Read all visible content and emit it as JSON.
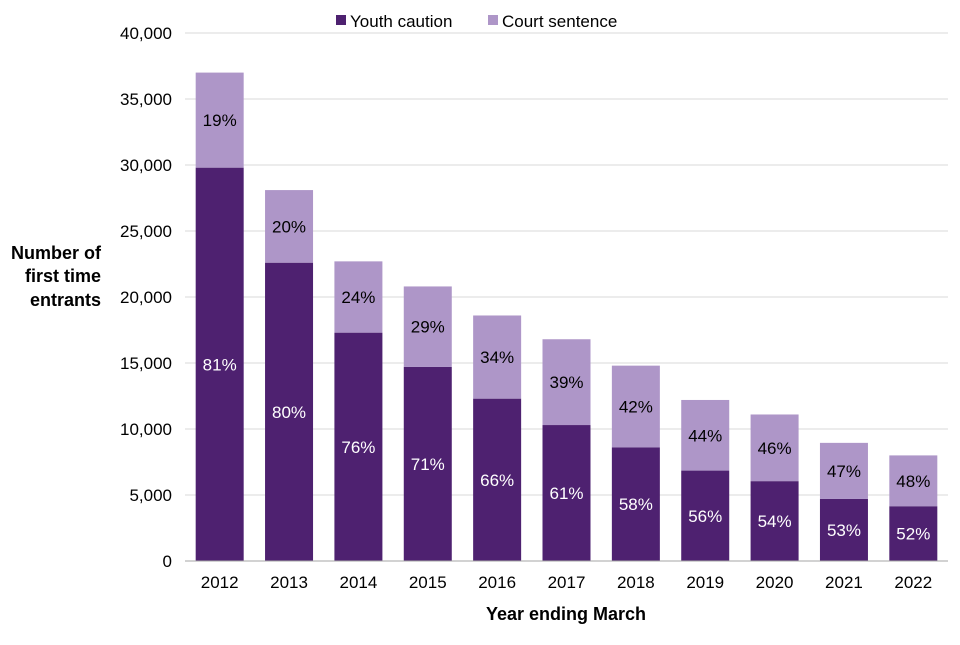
{
  "colors": {
    "youth_caution": "#4e2170",
    "court_sentence": "#ae96c8",
    "grid": "#d9d9d9",
    "axis": "#a6a6a6"
  },
  "chart_data": {
    "type": "bar",
    "stacked": true,
    "title": "",
    "xlabel": "Year ending March",
    "ylabel_lines": [
      "Number of",
      "first time",
      "entrants"
    ],
    "ylim": [
      0,
      40000
    ],
    "y_ticks": [
      0,
      5000,
      10000,
      15000,
      20000,
      25000,
      30000,
      35000,
      40000
    ],
    "y_tick_labels": [
      "0",
      "5,000",
      "10,000",
      "15,000",
      "20,000",
      "25,000",
      "30,000",
      "35,000",
      "40,000"
    ],
    "grid": true,
    "legend_position": "top-center",
    "categories": [
      "2012",
      "2013",
      "2014",
      "2015",
      "2016",
      "2017",
      "2018",
      "2019",
      "2020",
      "2021",
      "2022"
    ],
    "series": [
      {
        "name": "Youth caution",
        "color": "#4e2170",
        "label_color": "#ffffff",
        "values": [
          29800,
          22600,
          17300,
          14700,
          12300,
          10300,
          8600,
          6850,
          6050,
          4700,
          4150
        ],
        "labels": [
          "81%",
          "80%",
          "76%",
          "71%",
          "66%",
          "61%",
          "58%",
          "56%",
          "54%",
          "53%",
          "52%"
        ]
      },
      {
        "name": "Court sentence",
        "color": "#ae96c8",
        "label_color": "#000000",
        "values": [
          7200,
          5500,
          5400,
          6100,
          6300,
          6500,
          6200,
          5350,
          5050,
          4250,
          3850
        ],
        "labels": [
          "19%",
          "20%",
          "24%",
          "29%",
          "34%",
          "39%",
          "42%",
          "44%",
          "46%",
          "47%",
          "48%"
        ]
      }
    ]
  }
}
